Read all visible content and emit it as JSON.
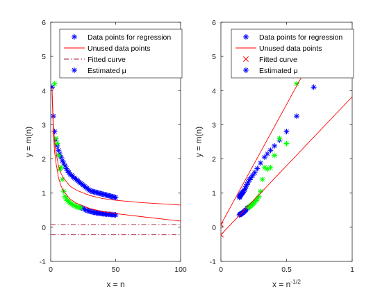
{
  "colors": {
    "blue": "#0000ff",
    "green": "#00ff00",
    "red": "#ff0000",
    "darkred": "#a2142f",
    "axis": "#262626"
  },
  "chart_data": [
    {
      "type": "scatter",
      "xlabel": "x = n",
      "ylabel": "y = m(n)",
      "xlim": [
        0,
        100
      ],
      "ylim": [
        -1,
        6
      ],
      "xticks": [
        0,
        50,
        100
      ],
      "yticks": [
        -1,
        0,
        1,
        2,
        3,
        4,
        5,
        6
      ],
      "grid": false,
      "legend": {
        "placement": "top-right",
        "entries": [
          {
            "label": "Data points for regression",
            "marker": "asterisk",
            "color": "blue"
          },
          {
            "label": "Unused data points",
            "marker": "line",
            "color": "red"
          },
          {
            "label": "Fitted curve",
            "marker": "dashdot",
            "color": "darkred"
          },
          {
            "label": "Estimated μ",
            "marker": "asterisk",
            "color": "blue"
          }
        ]
      },
      "series": [
        {
          "kind": "points",
          "color": "blue",
          "x": [
            1,
            2,
            3,
            4,
            5,
            6,
            7,
            8,
            9,
            10,
            11,
            12,
            13,
            14,
            15,
            16,
            17,
            18,
            19,
            20,
            21,
            22,
            23,
            24,
            25,
            26,
            27,
            28,
            29,
            30,
            31,
            32,
            33,
            34,
            35,
            36,
            37,
            38,
            39,
            40,
            41,
            42,
            43,
            44,
            45,
            46,
            47,
            48,
            49,
            50
          ],
          "y": [
            4.1,
            3.25,
            2.8,
            2.55,
            2.38,
            2.25,
            2.15,
            2.05,
            1.95,
            1.88,
            1.8,
            1.72,
            1.65,
            1.6,
            1.55,
            1.52,
            1.48,
            1.45,
            1.42,
            1.39,
            1.36,
            1.32,
            1.29,
            1.26,
            1.23,
            1.2,
            1.17,
            1.14,
            1.11,
            1.08,
            1.06,
            1.05,
            1.04,
            1.03,
            1.02,
            1.01,
            1.0,
            0.99,
            0.98,
            0.97,
            0.96,
            0.95,
            0.94,
            0.93,
            0.92,
            0.91,
            0.9,
            0.89,
            0.88,
            0.87
          ]
        },
        {
          "kind": "points",
          "color": "blue",
          "x": [
            24,
            25,
            26,
            27,
            28,
            29,
            30,
            31,
            32,
            33,
            34,
            35,
            36,
            37,
            38,
            39,
            40,
            41,
            42,
            43,
            44,
            45,
            46,
            47,
            48,
            49,
            50
          ],
          "y": [
            0.57,
            0.55,
            0.53,
            0.51,
            0.49,
            0.48,
            0.47,
            0.46,
            0.45,
            0.44,
            0.43,
            0.42,
            0.42,
            0.41,
            0.41,
            0.4,
            0.4,
            0.39,
            0.39,
            0.38,
            0.38,
            0.38,
            0.37,
            0.37,
            0.37,
            0.36,
            0.36
          ]
        },
        {
          "kind": "points",
          "color": "green",
          "x": [
            3,
            4,
            5,
            6,
            7,
            8,
            9,
            10,
            11,
            12,
            13,
            14,
            15,
            16,
            17,
            18,
            19,
            20,
            21,
            22,
            23
          ],
          "y": [
            4.2,
            2.6,
            2.45,
            2.1,
            1.7,
            1.75,
            1.4,
            1.05,
            0.9,
            0.83,
            0.78,
            0.74,
            0.71,
            0.68,
            0.66,
            0.64,
            0.62,
            0.6,
            0.59,
            0.58,
            0.57
          ]
        },
        {
          "kind": "line",
          "color": "red",
          "x": [
            1,
            2,
            3,
            4,
            6,
            8,
            10,
            15,
            20,
            30,
            40,
            50,
            70,
            100
          ],
          "y": [
            4.1,
            3.0,
            2.5,
            2.2,
            1.8,
            1.57,
            1.43,
            1.2,
            1.08,
            0.93,
            0.84,
            0.79,
            0.72,
            0.65
          ]
        },
        {
          "kind": "line",
          "color": "red",
          "x": [
            1,
            2,
            3,
            4,
            6,
            8,
            10,
            15,
            20,
            30,
            40,
            50,
            70,
            100
          ],
          "y": [
            4.0,
            2.8,
            2.2,
            1.9,
            1.45,
            1.2,
            1.05,
            0.82,
            0.7,
            0.55,
            0.46,
            0.4,
            0.31,
            0.18
          ]
        },
        {
          "kind": "dashdot",
          "color": "darkred",
          "x": [
            0,
            100
          ],
          "y": [
            0.08,
            0.08
          ]
        },
        {
          "kind": "dashdot",
          "color": "darkred",
          "x": [
            0,
            100
          ],
          "y": [
            -0.22,
            -0.22
          ]
        }
      ]
    },
    {
      "type": "scatter",
      "xlabel_base": "x = n",
      "xlabel_exp": "-1/2",
      "ylabel": "y = m(n)",
      "xlim": [
        0,
        1
      ],
      "ylim": [
        -1,
        6
      ],
      "xticks": [
        0,
        0.5,
        1
      ],
      "yticks": [
        -1,
        0,
        1,
        2,
        3,
        4,
        5,
        6
      ],
      "grid": false,
      "legend": {
        "placement": "top-right",
        "entries": [
          {
            "label": "Data points for regression",
            "marker": "asterisk",
            "color": "blue"
          },
          {
            "label": "Unused data points",
            "marker": "line",
            "color": "red"
          },
          {
            "label": "Fitted curve",
            "marker": "cross",
            "color": "red"
          },
          {
            "label": "Estimated μ",
            "marker": "asterisk",
            "color": "blue"
          }
        ]
      },
      "series": [
        {
          "kind": "points",
          "color": "blue",
          "x": [
            0.141,
            0.143,
            0.146,
            0.149,
            0.152,
            0.156,
            0.16,
            0.164,
            0.169,
            0.174,
            0.18,
            0.186,
            0.192,
            0.2,
            0.208,
            0.218,
            0.229,
            0.242,
            0.258,
            0.277,
            0.302,
            0.333,
            0.354,
            0.378,
            0.408,
            0.447,
            0.5,
            0.577,
            0.707,
            1.0
          ],
          "y": [
            0.87,
            0.89,
            0.91,
            0.93,
            0.95,
            0.97,
            0.99,
            1.01,
            1.03,
            1.06,
            1.1,
            1.14,
            1.2,
            1.25,
            1.32,
            1.39,
            1.45,
            1.52,
            1.6,
            1.72,
            1.88,
            2.05,
            2.15,
            2.25,
            2.38,
            2.55,
            2.8,
            3.25,
            4.1,
            5.7
          ]
        },
        {
          "kind": "points",
          "color": "blue",
          "x": [
            0.141,
            0.143,
            0.146,
            0.149,
            0.152,
            0.156,
            0.16,
            0.164,
            0.169,
            0.174,
            0.18,
            0.186,
            0.192,
            0.2,
            0.204
          ],
          "y": [
            0.36,
            0.37,
            0.37,
            0.38,
            0.39,
            0.4,
            0.41,
            0.42,
            0.43,
            0.45,
            0.47,
            0.49,
            0.51,
            0.55,
            0.57
          ]
        },
        {
          "kind": "points",
          "color": "green",
          "x": [
            0.209,
            0.218,
            0.224,
            0.229,
            0.236,
            0.243,
            0.25,
            0.258,
            0.267,
            0.277,
            0.289,
            0.302,
            0.316,
            0.333,
            0.354,
            0.378,
            0.408,
            0.447,
            0.5,
            0.577
          ],
          "y": [
            0.58,
            0.6,
            0.62,
            0.64,
            0.66,
            0.68,
            0.71,
            0.74,
            0.78,
            0.83,
            0.9,
            1.05,
            1.4,
            1.75,
            1.7,
            1.75,
            2.1,
            2.6,
            2.45,
            4.2
          ]
        },
        {
          "kind": "line",
          "color": "red",
          "x": [
            0,
            0.8
          ],
          "y": [
            0.08,
            5.7
          ]
        },
        {
          "kind": "line",
          "color": "red",
          "x": [
            0,
            1.0
          ],
          "y": [
            -0.22,
            3.82
          ]
        },
        {
          "kind": "cross",
          "color": "red",
          "x": [
            0,
            0
          ],
          "y": [
            0.08,
            -0.22
          ]
        }
      ]
    }
  ]
}
